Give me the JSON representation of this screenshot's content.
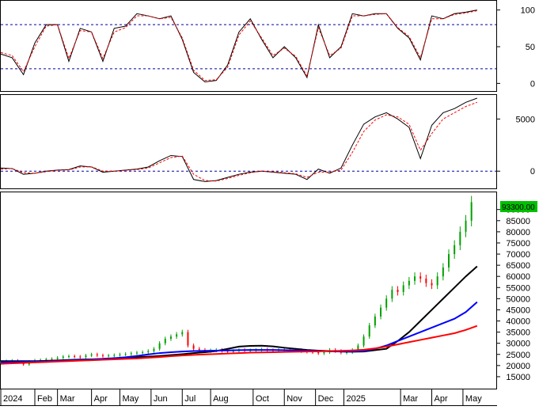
{
  "chart_data": [
    {
      "panel": "stochastic",
      "type": "line",
      "y_ticks": [
        "100",
        "50",
        "0"
      ],
      "ylim": [
        -5,
        105
      ],
      "reference_lines": [
        80,
        20
      ],
      "x": [
        0,
        4,
        8,
        12,
        16,
        20,
        24,
        28,
        32,
        36,
        40,
        44,
        48,
        52,
        56,
        60,
        64,
        68,
        72,
        76,
        80,
        84,
        88,
        92,
        96,
        100,
        104,
        108,
        112,
        116,
        120,
        124,
        128,
        132,
        136,
        140,
        144,
        148,
        152,
        156,
        160,
        164,
        168
      ],
      "series": [
        {
          "color": "#000000",
          "style": "solid",
          "values": [
            40,
            35,
            12,
            55,
            80,
            80,
            30,
            75,
            70,
            30,
            75,
            78,
            95,
            92,
            88,
            92,
            60,
            15,
            2,
            4,
            25,
            70,
            88,
            60,
            35,
            50,
            35,
            8,
            80,
            35,
            50,
            95,
            92,
            95,
            95,
            75,
            62,
            32,
            92,
            88,
            95,
            97,
            100
          ]
        },
        {
          "color": "#ff0000",
          "style": "dashed",
          "values": [
            42,
            38,
            16,
            50,
            78,
            80,
            34,
            72,
            70,
            34,
            70,
            76,
            92,
            92,
            88,
            90,
            62,
            18,
            4,
            5,
            22,
            66,
            85,
            62,
            38,
            48,
            37,
            10,
            76,
            38,
            48,
            92,
            92,
            94,
            95,
            76,
            64,
            35,
            88,
            88,
            94,
            96,
            99
          ]
        }
      ]
    },
    {
      "panel": "momentum",
      "type": "line",
      "y_ticks": [
        "5000",
        "0"
      ],
      "ylim": [
        -1500,
        7000
      ],
      "reference_lines": [
        0
      ],
      "x": [
        0,
        4,
        8,
        12,
        16,
        20,
        24,
        28,
        32,
        36,
        40,
        44,
        48,
        52,
        56,
        60,
        64,
        68,
        72,
        76,
        80,
        84,
        88,
        92,
        96,
        100,
        104,
        108,
        112,
        116,
        120,
        124,
        128,
        132,
        136,
        140,
        144,
        148,
        152,
        156,
        160,
        164,
        168
      ],
      "series": [
        {
          "color": "#000000",
          "style": "solid",
          "values": [
            300,
            250,
            -300,
            -200,
            0,
            100,
            150,
            500,
            400,
            -100,
            0,
            100,
            200,
            400,
            1000,
            1500,
            1400,
            -800,
            -1000,
            -900,
            -600,
            -300,
            -100,
            0,
            -100,
            -200,
            -300,
            -800,
            200,
            -200,
            300,
            2500,
            4500,
            5200,
            5600,
            5000,
            4200,
            1200,
            4400,
            5600,
            6000,
            6600,
            7000
          ]
        },
        {
          "color": "#ff0000",
          "style": "dashed",
          "values": [
            200,
            250,
            -150,
            -200,
            -50,
            80,
            120,
            400,
            420,
            0,
            0,
            80,
            150,
            300,
            800,
            1300,
            1450,
            -300,
            -900,
            -950,
            -700,
            -400,
            -150,
            0,
            -50,
            -150,
            -250,
            -600,
            -100,
            -100,
            100,
            1800,
            3800,
            4900,
            5400,
            5200,
            4500,
            2000,
            3600,
            5000,
            5600,
            6200,
            6600
          ]
        }
      ]
    },
    {
      "panel": "price",
      "type": "candlestick",
      "y_ticks": [
        "90000",
        "85000",
        "80000",
        "75000",
        "70000",
        "65000",
        "60000",
        "55000",
        "50000",
        "45000",
        "40000",
        "35000",
        "30000",
        "25000",
        "20000",
        "15000"
      ],
      "ylim": [
        10000,
        97000
      ],
      "last_price": "93300.00",
      "last_price_color": "#00c000",
      "x_ticks": [
        {
          "label": "2024",
          "x": 0
        },
        {
          "label": "Feb",
          "x": 12
        },
        {
          "label": "Mar",
          "x": 20
        },
        {
          "label": "Apr",
          "x": 32
        },
        {
          "label": "May",
          "x": 42
        },
        {
          "label": "Jun",
          "x": 53
        },
        {
          "label": "Jul",
          "x": 64
        },
        {
          "label": "Aug",
          "x": 74
        },
        {
          "label": "Oct",
          "x": 89
        },
        {
          "label": "Nov",
          "x": 100
        },
        {
          "label": "Dec",
          "x": 111
        },
        {
          "label": "2025",
          "x": 121
        },
        {
          "label": "Mar",
          "x": 141
        },
        {
          "label": "Apr",
          "x": 152
        },
        {
          "label": "May",
          "x": 163
        }
      ],
      "xlim": [
        0,
        170
      ],
      "x": [
        0,
        2,
        4,
        6,
        8,
        10,
        12,
        14,
        16,
        18,
        20,
        22,
        24,
        26,
        28,
        30,
        32,
        34,
        36,
        38,
        40,
        42,
        44,
        46,
        48,
        50,
        52,
        54,
        56,
        58,
        60,
        62,
        64,
        66,
        68,
        70,
        72,
        74,
        76,
        78,
        80,
        82,
        84,
        86,
        88,
        90,
        92,
        94,
        96,
        98,
        100,
        102,
        104,
        106,
        108,
        110,
        112,
        114,
        116,
        118,
        120,
        122,
        124,
        126,
        128,
        130,
        132,
        134,
        136,
        138,
        140,
        142,
        144,
        146,
        148,
        150,
        152,
        154,
        156,
        158,
        160,
        162,
        164,
        166
      ],
      "close": [
        21500,
        22000,
        22200,
        21500,
        20500,
        21800,
        22300,
        22500,
        22800,
        23000,
        23500,
        24000,
        24200,
        24000,
        23800,
        24500,
        25000,
        24600,
        24300,
        24500,
        24700,
        25000,
        25200,
        25500,
        25800,
        26000,
        26500,
        27500,
        30000,
        32000,
        33000,
        34000,
        35000,
        29000,
        27500,
        27000,
        26500,
        26800,
        27000,
        26500,
        26200,
        26500,
        27000,
        26700,
        26800,
        27000,
        27200,
        26900,
        26700,
        27000,
        27200,
        27000,
        26900,
        26500,
        26200,
        26000,
        25500,
        26000,
        27000,
        26500,
        25800,
        26000,
        27000,
        29000,
        33000,
        38000,
        42000,
        46000,
        50000,
        54000,
        53000,
        56000,
        58000,
        60000,
        59000,
        57000,
        56000,
        60000,
        64000,
        70000,
        74000,
        80000,
        85000,
        93300
      ],
      "moving_averages": [
        {
          "color": "#000000",
          "values": [
            22000,
            22000,
            22000,
            22000,
            22100,
            22300,
            22500,
            22700,
            22800,
            23000,
            23200,
            23500,
            23800,
            24000,
            24300,
            24700,
            25100,
            25600,
            26000,
            26500,
            27500,
            28500,
            28800,
            28900,
            28600,
            28000,
            27500,
            27000,
            26700,
            26500,
            26300,
            26200,
            26300,
            26900,
            27500,
            31000,
            35000,
            40000,
            45000,
            50000,
            55000,
            60000,
            64500
          ]
        },
        {
          "color": "#0000ff",
          "values": [
            21500,
            21600,
            21700,
            21800,
            21900,
            22100,
            22300,
            22500,
            22700,
            23000,
            23300,
            23700,
            24300,
            25000,
            25600,
            26000,
            26300,
            26500,
            26600,
            26700,
            26800,
            26900,
            27000,
            27000,
            27000,
            26900,
            26800,
            26700,
            26600,
            26400,
            26300,
            26300,
            26600,
            27500,
            29000,
            31000,
            33000,
            35000,
            37000,
            39000,
            41000,
            44000,
            48500
          ]
        },
        {
          "color": "#ff0000",
          "values": [
            20800,
            21000,
            21200,
            21400,
            21600,
            21800,
            22000,
            22200,
            22400,
            22600,
            22800,
            23000,
            23200,
            23500,
            23800,
            24200,
            24500,
            24800,
            25000,
            25200,
            25400,
            25600,
            25800,
            25900,
            26000,
            26100,
            26200,
            26300,
            26400,
            26500,
            26600,
            26800,
            27100,
            27700,
            28500,
            29500,
            30500,
            31500,
            32500,
            33500,
            34500,
            36000,
            37800
          ]
        }
      ],
      "ma_x": [
        0,
        4,
        8,
        12,
        16,
        20,
        24,
        28,
        32,
        36,
        40,
        44,
        48,
        52,
        56,
        60,
        64,
        68,
        72,
        76,
        80,
        84,
        88,
        92,
        96,
        100,
        104,
        108,
        112,
        116,
        120,
        124,
        128,
        132,
        136,
        140,
        144,
        148,
        152,
        156,
        160,
        164,
        168
      ]
    }
  ]
}
